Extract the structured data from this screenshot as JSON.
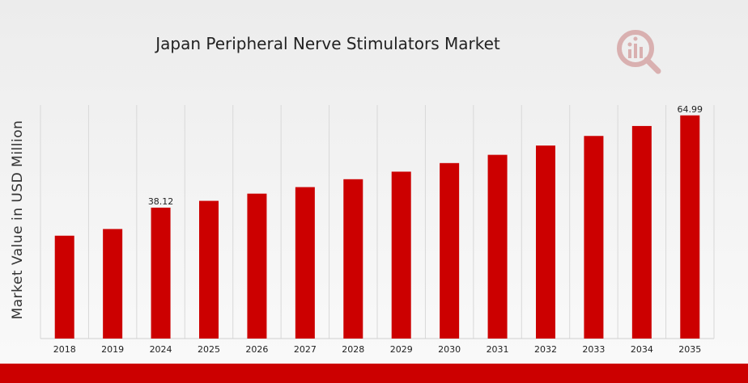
{
  "chart_data": {
    "type": "bar",
    "title": "Japan Peripheral Nerve Stimulators Market",
    "xlabel": "",
    "ylabel": "Market Value in USD Million",
    "categories": [
      "2018",
      "2019",
      "2024",
      "2025",
      "2026",
      "2027",
      "2028",
      "2029",
      "2030",
      "2031",
      "2032",
      "2033",
      "2034",
      "2035"
    ],
    "values": [
      29.95,
      31.9,
      38.12,
      40.1,
      42.2,
      44.1,
      46.4,
      48.6,
      51.1,
      53.5,
      56.2,
      59.0,
      61.9,
      64.99
    ],
    "data_labels": [
      {
        "category": "2024",
        "text": "38.12"
      },
      {
        "category": "2035",
        "text": "64.99"
      }
    ],
    "ylim": [
      0,
      68
    ],
    "grid": "vertical",
    "legend": "none",
    "bar_color": "#cc0000"
  },
  "colors": {
    "accent": "#cc0000",
    "logo": "#d9b0b0"
  },
  "logo": {
    "icon": "market-research-logo-icon"
  }
}
